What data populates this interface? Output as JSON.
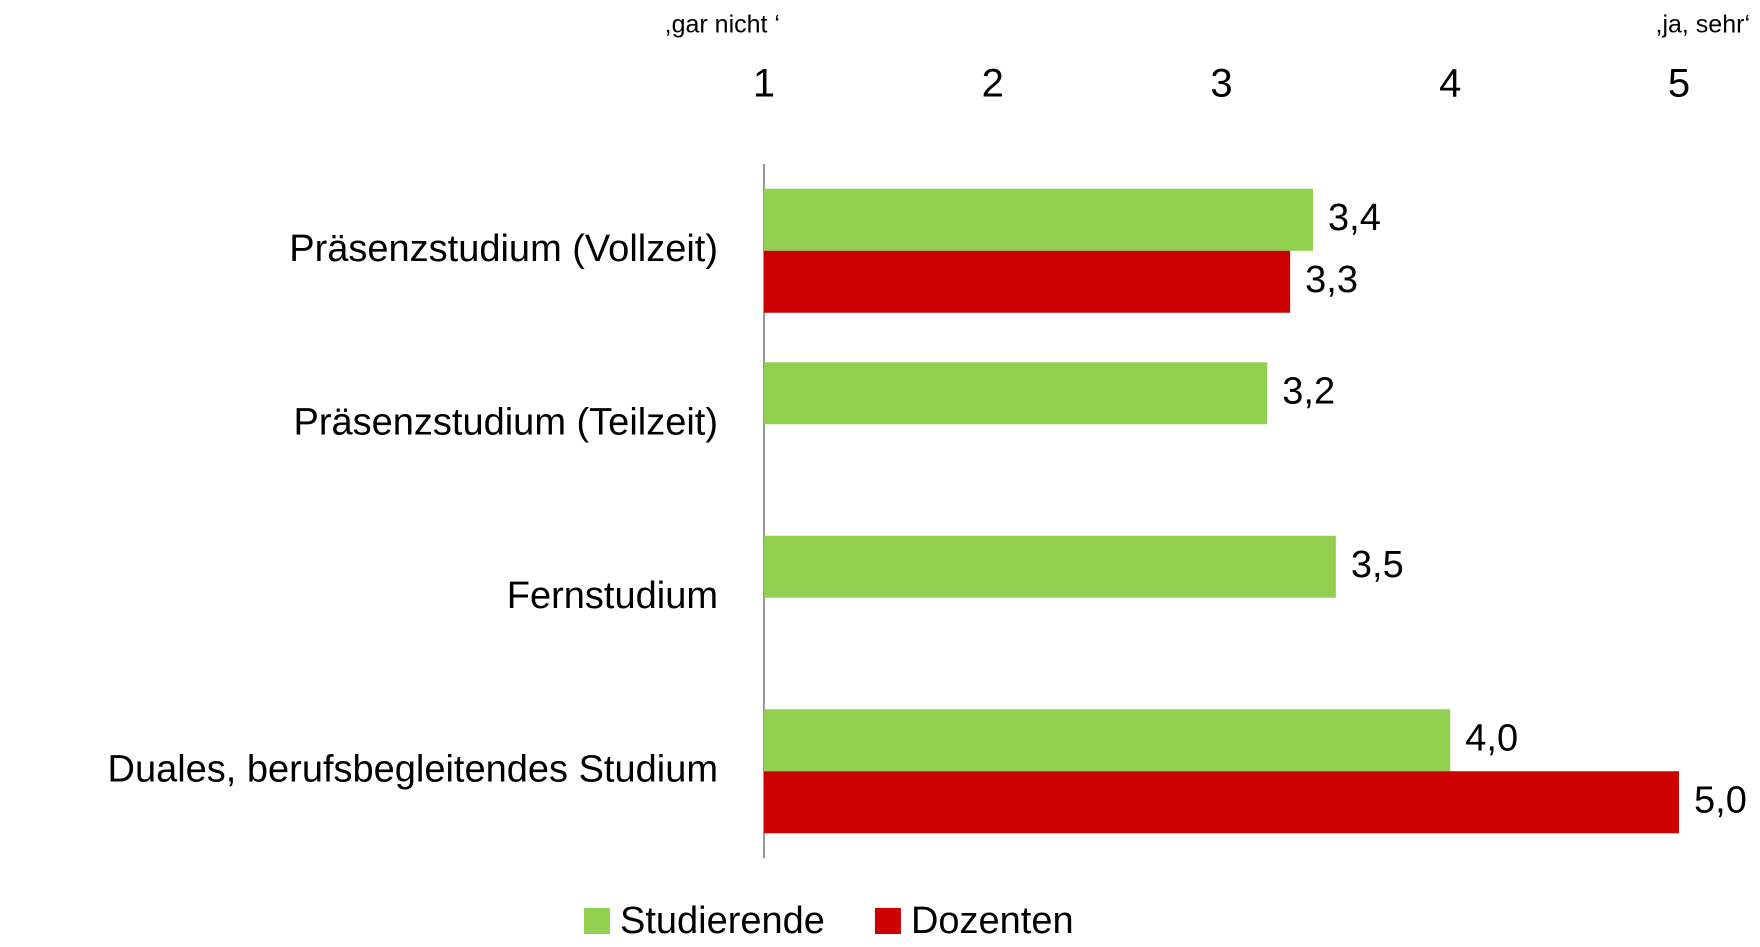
{
  "chart_data": {
    "type": "bar",
    "orientation": "horizontal",
    "annotations": [
      ",gar nicht ‘",
      ",ja, sehr‘"
    ],
    "categories": [
      "Präsenzstudium (Vollzeit)",
      "Präsenzstudium (Teilzeit)",
      "Fernstudium",
      "Duales, berufsbegleitendes Studium"
    ],
    "series": [
      {
        "name": "Studierende",
        "color": "#92d050",
        "values": [
          3.4,
          3.2,
          3.5,
          4.0
        ],
        "value_labels": [
          "3,4",
          "3,2",
          "3,5",
          "4,0"
        ]
      },
      {
        "name": "Dozenten",
        "color": "#cc0000",
        "values": [
          3.3,
          null,
          null,
          5.0
        ],
        "value_labels": [
          "3,3",
          null,
          null,
          "5,0"
        ]
      }
    ],
    "xlim": [
      1,
      5
    ],
    "xticks": [
      1,
      2,
      3,
      4,
      5
    ],
    "grid": false,
    "legend": "bottom"
  }
}
